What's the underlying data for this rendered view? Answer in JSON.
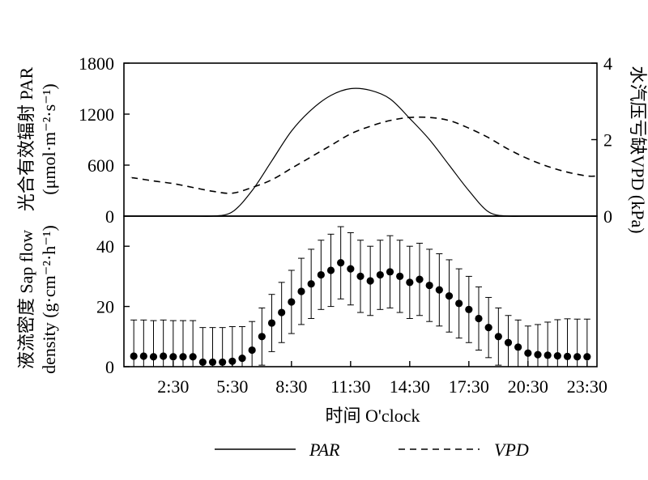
{
  "chart_data": [
    {
      "id": "top",
      "type": "line",
      "x": [
        0.5,
        1.5,
        2.5,
        3.5,
        4.5,
        5.5,
        6.5,
        7.5,
        8.5,
        9.5,
        10.5,
        11.5,
        12.5,
        13.5,
        14.5,
        15.5,
        16.5,
        17.5,
        18.5,
        19.5,
        20.5,
        21.5,
        22.5,
        23.5
      ],
      "series": [
        {
          "name": "PAR",
          "axis": "left",
          "values": [
            0,
            0,
            0,
            0,
            0,
            50,
            300,
            650,
            1000,
            1250,
            1420,
            1500,
            1480,
            1380,
            1150,
            900,
            600,
            300,
            50,
            0,
            0,
            0,
            0,
            0
          ]
        },
        {
          "name": "VPD",
          "axis": "right",
          "values": [
            1.0,
            0.92,
            0.85,
            0.75,
            0.65,
            0.6,
            0.75,
            0.95,
            1.25,
            1.55,
            1.85,
            2.15,
            2.35,
            2.5,
            2.58,
            2.58,
            2.5,
            2.3,
            2.05,
            1.75,
            1.5,
            1.3,
            1.15,
            1.05
          ]
        }
      ],
      "ylabel": "光合有效辐射 PAR (μmol·m⁻²·s⁻¹)",
      "ylabel_right": "水汽压亏缺VPD (kPa)",
      "ylim": [
        0,
        1800
      ],
      "ylim_right": [
        0,
        4
      ],
      "yticks": [
        0,
        600,
        1200,
        1800
      ],
      "yticks_right": [
        0,
        2,
        4
      ]
    },
    {
      "id": "bottom",
      "type": "scatter",
      "x": [
        0.5,
        1,
        1.5,
        2,
        2.5,
        3,
        3.5,
        4,
        4.5,
        5,
        5.5,
        6,
        6.5,
        7,
        7.5,
        8,
        8.5,
        9,
        9.5,
        10,
        10.5,
        11,
        11.5,
        12,
        12.5,
        13,
        13.5,
        14,
        14.5,
        15,
        15.5,
        16,
        16.5,
        17,
        17.5,
        18,
        18.5,
        19,
        19.5,
        20,
        20.5,
        21,
        21.5,
        22,
        22.5,
        23,
        23.5
      ],
      "series": [
        {
          "name": "Sap flow density",
          "values": [
            3.5,
            3.5,
            3.3,
            3.5,
            3.3,
            3.3,
            3.3,
            1.5,
            1.5,
            1.5,
            1.8,
            2.8,
            5.5,
            10,
            14.5,
            18,
            21.5,
            25,
            27.5,
            30.5,
            32,
            34.5,
            32.5,
            30,
            28.5,
            30.5,
            31.5,
            30,
            28,
            29,
            27,
            25.5,
            23.5,
            21,
            19,
            16,
            13,
            10,
            8,
            6.5,
            4.5,
            4,
            3.8,
            3.6,
            3.4,
            3.3,
            3.3
          ],
          "err": [
            12,
            12,
            12,
            12,
            12,
            12,
            12,
            11.5,
            11.5,
            11.5,
            11.5,
            10.5,
            9.5,
            9.5,
            9.5,
            10,
            10.5,
            11,
            11.5,
            11.5,
            12,
            12,
            12,
            12,
            11.5,
            11.5,
            12,
            12,
            12,
            12,
            12,
            12,
            12,
            11.5,
            11,
            10.5,
            10,
            9.5,
            9,
            9,
            9,
            10,
            11,
            12,
            12.5,
            12.5,
            12.5
          ]
        }
      ],
      "ylabel": "液流密度 Sap flow density (g·cm⁻²·h⁻¹)",
      "xlabel": "时间 O'clock",
      "xlim": [
        0,
        24
      ],
      "ylim": [
        0,
        50
      ],
      "yticks": [
        0,
        20,
        40
      ],
      "xtick_values": [
        2.5,
        5.5,
        8.5,
        11.5,
        14.5,
        17.5,
        20.5,
        23.5
      ],
      "xtick_labels": [
        "2:30",
        "5:30",
        "8:30",
        "11:30",
        "14:30",
        "17:30",
        "20:30",
        "23:30"
      ]
    }
  ],
  "legend": [
    {
      "label": "PAR",
      "style": "solid"
    },
    {
      "label": "VPD",
      "style": "dashed"
    }
  ],
  "labels": {
    "top_ylabel_line1": "光合有效辐射 PAR",
    "top_ylabel_line2": "(μmol·m⁻²·s⁻¹)",
    "right_ylabel": "水汽压亏缺VPD (kPa)",
    "bottom_ylabel_line1": "液流密度 Sap flow",
    "bottom_ylabel_line2": "density (g·cm⁻²·h⁻¹)",
    "xlabel": "时间 O'clock"
  }
}
